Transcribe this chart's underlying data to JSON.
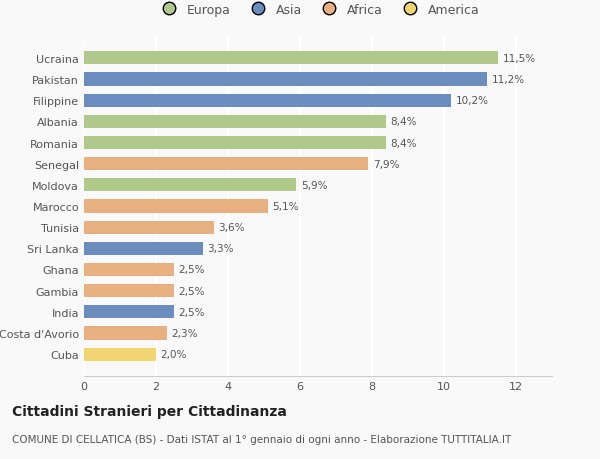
{
  "categories": [
    "Ucraina",
    "Pakistan",
    "Filippine",
    "Albania",
    "Romania",
    "Senegal",
    "Moldova",
    "Marocco",
    "Tunisia",
    "Sri Lanka",
    "Ghana",
    "Gambia",
    "India",
    "Costa d'Avorio",
    "Cuba"
  ],
  "values": [
    11.5,
    11.2,
    10.2,
    8.4,
    8.4,
    7.9,
    5.9,
    5.1,
    3.6,
    3.3,
    2.5,
    2.5,
    2.5,
    2.3,
    2.0
  ],
  "labels": [
    "11,5%",
    "11,2%",
    "10,2%",
    "8,4%",
    "8,4%",
    "7,9%",
    "5,9%",
    "5,1%",
    "3,6%",
    "3,3%",
    "2,5%",
    "2,5%",
    "2,5%",
    "2,3%",
    "2,0%"
  ],
  "bar_colors": [
    "#aec98a",
    "#6b8cbf",
    "#6b8cbf",
    "#aec98a",
    "#aec98a",
    "#e8b080",
    "#aec98a",
    "#e8b080",
    "#e8b080",
    "#6b8cbf",
    "#e8b080",
    "#e8b080",
    "#6b8cbf",
    "#e8b080",
    "#f0d570"
  ],
  "legend_labels": [
    "Europa",
    "Asia",
    "Africa",
    "America"
  ],
  "legend_colors": [
    "#aec98a",
    "#6b8cbf",
    "#e8b080",
    "#f0d570"
  ],
  "title": "Cittadini Stranieri per Cittadinanza",
  "subtitle": "COMUNE DI CELLATICA (BS) - Dati ISTAT al 1° gennaio di ogni anno - Elaborazione TUTTITALIA.IT",
  "xlim": [
    0,
    13
  ],
  "xticks": [
    0,
    2,
    4,
    6,
    8,
    10,
    12
  ],
  "background_color": "#f9f9f9",
  "grid_color": "#ffffff",
  "title_fontsize": 10,
  "subtitle_fontsize": 7.5,
  "label_fontsize": 7.5,
  "tick_fontsize": 8,
  "bar_height": 0.62
}
